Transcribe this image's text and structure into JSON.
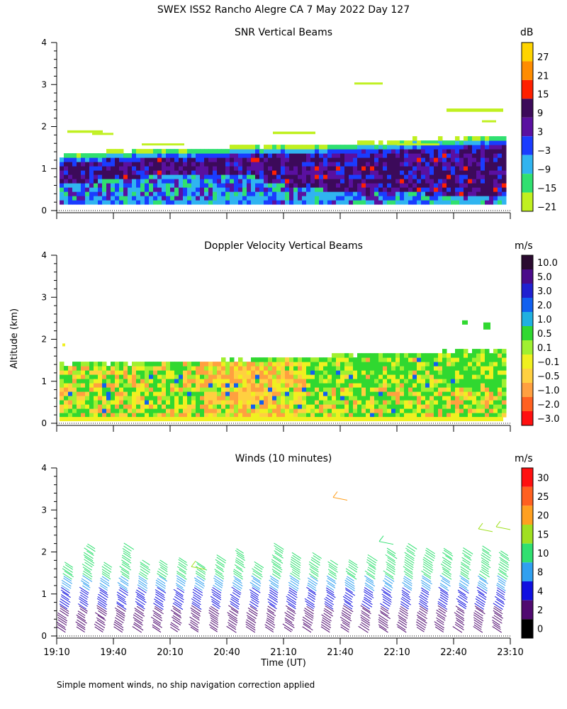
{
  "title": "SWEX ISS2 Rancho Alegre CA   7 May 2022 Day 127",
  "ylabel": "Altitude (km)",
  "xlabel": "Time (UT)",
  "footnote": "Simple moment winds, no ship navigation correction applied",
  "chart_data": [
    {
      "type": "heatmap",
      "title": "SNR Vertical Beams",
      "colorbar_unit": "dB",
      "colorbar_labels": [
        "27",
        "21",
        "15",
        "9",
        "3",
        "−3",
        "−9",
        "−15",
        "−21"
      ],
      "colorbar_colors": [
        "#ffd400",
        "#ff8c00",
        "#ff2000",
        "#3c0a5a",
        "#5a10a0",
        "#1a3cff",
        "#30b4f0",
        "#30e070",
        "#c0f020"
      ],
      "y_ticks": [
        "4",
        "3",
        "2",
        "1",
        "0"
      ],
      "ylim": [
        0,
        4
      ],
      "x_tick_count": 9,
      "echo_top_km": [
        1.3,
        1.35,
        1.4,
        1.42,
        1.45,
        1.5,
        1.5,
        1.55,
        1.6,
        1.65,
        1.7,
        1.75
      ],
      "echo_base_km": 0.15
    },
    {
      "type": "heatmap",
      "title": "Doppler Velocity Vertical Beams",
      "colorbar_unit": "m/s",
      "colorbar_labels": [
        "10.0",
        "5.0",
        "3.0",
        "2.0",
        "1.0",
        "0.5",
        "0.1",
        "−0.1",
        "−0.5",
        "−1.0",
        "−2.0",
        "−3.0"
      ],
      "colorbar_colors": [
        "#2a0a30",
        "#4a0a8a",
        "#2020d0",
        "#1060f0",
        "#20b0e0",
        "#30d830",
        "#a0f030",
        "#f0f020",
        "#ffd040",
        "#ffa040",
        "#ff6020",
        "#ff1010"
      ],
      "y_ticks": [
        "4",
        "3",
        "2",
        "1",
        "0"
      ],
      "ylim": [
        0,
        4
      ],
      "x_tick_count": 9,
      "echo_top_km": [
        1.35,
        1.4,
        1.4,
        1.42,
        1.45,
        1.5,
        1.5,
        1.6,
        1.6,
        1.65,
        1.7,
        1.7
      ],
      "echo_base_km": 0.15
    },
    {
      "type": "scatter",
      "title": "Winds (10 minutes)",
      "colorbar_unit": "m/s",
      "colorbar_labels": [
        "30",
        "25",
        "20",
        "15",
        "10",
        "8",
        "4",
        "2",
        "0"
      ],
      "colorbar_colors": [
        "#ff1010",
        "#ff6020",
        "#ffa020",
        "#a0e020",
        "#30e070",
        "#30a0f0",
        "#1010e0",
        "#500a70",
        "#000000"
      ],
      "y_ticks": [
        "4",
        "3",
        "2",
        "1",
        "0"
      ],
      "ylim": [
        0,
        4
      ],
      "x_ticks": [
        "19:10",
        "19:40",
        "20:10",
        "20:40",
        "21:10",
        "21:40",
        "22:10",
        "22:40",
        "23:10"
      ],
      "x_range_minutes": [
        0,
        240
      ],
      "profile_times_min": [
        5,
        15,
        25,
        35,
        45,
        55,
        65,
        75,
        85,
        95,
        105,
        115,
        125,
        135,
        145,
        155,
        165,
        175,
        185,
        195,
        205,
        215,
        225,
        235
      ],
      "profile_top_km": [
        1.7,
        2.15,
        1.7,
        2.15,
        1.75,
        1.75,
        1.85,
        1.7,
        1.9,
        2.05,
        1.7,
        2.15,
        1.95,
        1.95,
        1.75,
        1.75,
        1.9,
        2.05,
        2.15,
        2.05,
        2.05,
        2.05,
        2.1,
        2.0
      ]
    }
  ]
}
